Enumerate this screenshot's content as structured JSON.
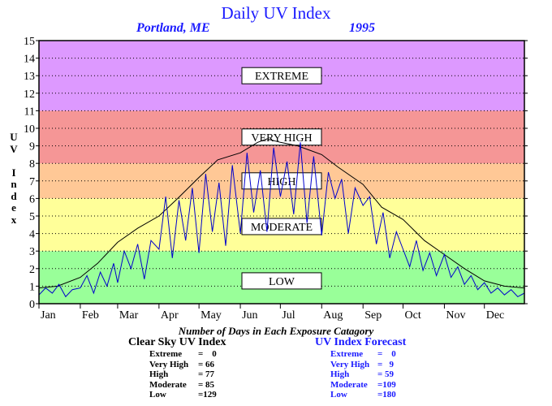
{
  "header": {
    "title": "Daily UV Index",
    "location": "Portland, ME",
    "year": "1995"
  },
  "colors": {
    "extreme": "#dd99ff",
    "very_high": "#f59696",
    "high": "#ffc896",
    "moderate": "#ffff99",
    "low": "#99ff99",
    "clear_sky_line": "#000000",
    "forecast_line": "#0000cc",
    "accent_text": "#1a1aff"
  },
  "chart_data": {
    "type": "line",
    "title": "Daily UV Index",
    "ylabel": "UV Index",
    "ylim": [
      0,
      15
    ],
    "yticks": [
      0,
      1,
      2,
      3,
      4,
      5,
      6,
      7,
      8,
      9,
      10,
      11,
      12,
      13,
      14,
      15
    ],
    "x_range_days": [
      1,
      365
    ],
    "x_tick_labels": [
      "Jan",
      "Feb",
      "Mar",
      "Apr",
      "May",
      "Jun",
      "Jul",
      "Aug",
      "Sep",
      "Oct",
      "Nov",
      "Dec"
    ],
    "x_tick_days": [
      1,
      32,
      60,
      91,
      121,
      152,
      182,
      213,
      244,
      274,
      305,
      335
    ],
    "grid": "horizontal-dotted",
    "bands": [
      {
        "label": "LOW",
        "from": 0,
        "to": 3,
        "color": "#99ff99",
        "label_y": 1.3
      },
      {
        "label": "MODERATE",
        "from": 3,
        "to": 6,
        "color": "#ffff99",
        "label_y": 4.4
      },
      {
        "label": "HIGH",
        "from": 6,
        "to": 8,
        "color": "#ffc896",
        "label_y": 7.0
      },
      {
        "label": "VERY HIGH",
        "from": 8,
        "to": 11,
        "color": "#f59696",
        "label_y": 9.5
      },
      {
        "label": "EXTREME",
        "from": 11,
        "to": 15,
        "color": "#dd99ff",
        "label_y": 13.0
      }
    ],
    "series": [
      {
        "name": "Clear Sky UV Index",
        "color": "#000000",
        "days": [
          1,
          15,
          32,
          45,
          60,
          75,
          91,
          105,
          121,
          135,
          152,
          165,
          172,
          182,
          195,
          213,
          225,
          244,
          258,
          274,
          290,
          305,
          320,
          335,
          350,
          365
        ],
        "values": [
          0.9,
          1.0,
          1.5,
          2.3,
          3.5,
          4.3,
          5.0,
          6.0,
          7.2,
          8.2,
          8.6,
          9.2,
          9.4,
          9.2,
          9.0,
          8.5,
          7.8,
          6.8,
          5.5,
          4.8,
          3.6,
          2.8,
          2.0,
          1.3,
          1.0,
          0.9
        ]
      },
      {
        "name": "UV Index Forecast",
        "color": "#0000cc",
        "days": [
          1,
          6,
          11,
          16,
          21,
          26,
          32,
          37,
          42,
          47,
          52,
          57,
          60,
          65,
          70,
          75,
          80,
          85,
          91,
          96,
          101,
          106,
          111,
          116,
          121,
          126,
          131,
          136,
          141,
          146,
          152,
          157,
          162,
          167,
          172,
          177,
          182,
          187,
          192,
          197,
          202,
          207,
          213,
          218,
          223,
          228,
          233,
          238,
          244,
          249,
          254,
          259,
          264,
          269,
          274,
          279,
          284,
          289,
          294,
          299,
          305,
          310,
          315,
          320,
          325,
          330,
          335,
          340,
          345,
          350,
          355,
          360,
          365
        ],
        "values": [
          0.5,
          0.9,
          0.6,
          1.1,
          0.4,
          0.8,
          0.9,
          1.6,
          0.6,
          1.8,
          1.0,
          2.3,
          1.2,
          3.0,
          2.0,
          3.4,
          1.4,
          3.6,
          3.1,
          6.1,
          2.6,
          5.9,
          3.6,
          6.6,
          2.9,
          7.4,
          4.1,
          6.9,
          3.3,
          7.9,
          4.0,
          8.6,
          5.2,
          7.6,
          4.1,
          8.9,
          6.1,
          8.1,
          5.1,
          9.2,
          4.6,
          8.4,
          3.9,
          7.5,
          6.0,
          7.1,
          4.0,
          6.6,
          5.6,
          6.1,
          3.4,
          5.2,
          2.6,
          4.1,
          3.1,
          2.1,
          3.6,
          1.9,
          2.9,
          1.6,
          2.8,
          1.5,
          2.1,
          1.1,
          1.6,
          0.8,
          1.2,
          0.6,
          0.9,
          0.5,
          0.8,
          0.4,
          0.6
        ]
      }
    ],
    "caption": "Number of Days in Each Exposure Catagory",
    "stats": [
      {
        "title": "Clear Sky UV Index",
        "rows": [
          {
            "label": "Extreme",
            "value": "=    0"
          },
          {
            "label": "Very High",
            "value": "= 66"
          },
          {
            "label": "High",
            "value": "= 77"
          },
          {
            "label": "Moderate",
            "value": "= 85"
          },
          {
            "label": "Low",
            "value": "=129"
          }
        ]
      },
      {
        "title": "UV Index Forecast",
        "rows": [
          {
            "label": "Extreme",
            "value": "=    0"
          },
          {
            "label": "Very High",
            "value": "=   9"
          },
          {
            "label": "High",
            "value": "= 59"
          },
          {
            "label": "Moderate",
            "value": "=109"
          },
          {
            "label": "Low",
            "value": "=180"
          }
        ]
      }
    ]
  }
}
